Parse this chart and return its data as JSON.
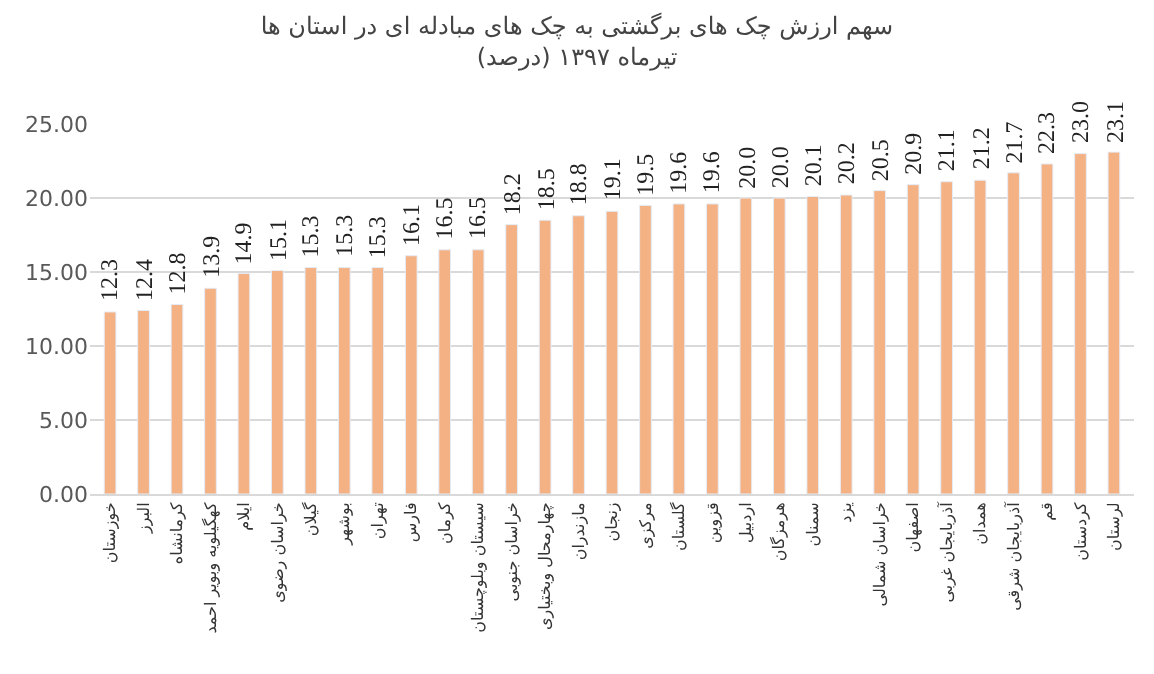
{
  "chart_data": {
    "type": "bar",
    "title": "سهم ارزش چک های برگشتی به چک های مبادله ای در استان ها",
    "subtitle": "تیرماه ۱۳۹۷ (درصد)",
    "categories": [
      "خوزستان",
      "البرز",
      "کرمانشاه",
      "کهگیلویه وبویر احمد",
      "ایلام",
      "خراسان رضوی",
      "گیلان",
      "بوشهر",
      "تهران",
      "فارس",
      "کرمان",
      "سیستان وبلوچستان",
      "خراسان جنوبی",
      "چهارمحال وبختیاری",
      "مازندران",
      "زنجان",
      "مرکزی",
      "گلستان",
      "قزوین",
      "اردبیل",
      "هرمزگان",
      "سمنان",
      "یزد",
      "خراسان شمالی",
      "اصفهان",
      "آذربایجان غربی",
      "همدان",
      "آذربایجان شرقی",
      "قم",
      "کردستان",
      "لرستان"
    ],
    "values": [
      12.3,
      12.4,
      12.8,
      13.9,
      14.9,
      15.1,
      15.3,
      15.3,
      15.3,
      16.1,
      16.5,
      16.5,
      18.2,
      18.5,
      18.8,
      19.1,
      19.5,
      19.6,
      19.6,
      20.0,
      20.0,
      20.1,
      20.2,
      20.5,
      20.9,
      21.1,
      21.2,
      21.7,
      22.3,
      23.0,
      23.1
    ],
    "color": "#f4b183",
    "ylim": [
      0,
      25
    ],
    "yticks": [
      {
        "value": 0,
        "label": "0.00"
      },
      {
        "value": 5,
        "label": "5.00"
      },
      {
        "value": 10,
        "label": "10.00"
      },
      {
        "value": 15,
        "label": "15.00"
      },
      {
        "value": 20,
        "label": "20.00"
      },
      {
        "value": 25,
        "label": "25.00"
      }
    ],
    "grid": "y",
    "value_labels": [
      "12.3",
      "12.4",
      "12.8",
      "13.9",
      "14.9",
      "15.1",
      "15.3",
      "15.3",
      "15.3",
      "16.1",
      "16.5",
      "16.5",
      "18.2",
      "18.5",
      "18.8",
      "19.1",
      "19.5",
      "19.6",
      "19.6",
      "20.0",
      "20.0",
      "20.1",
      "20.2",
      "20.5",
      "20.9",
      "21.1",
      "21.2",
      "21.7",
      "22.3",
      "23.0",
      "23.1"
    ]
  }
}
